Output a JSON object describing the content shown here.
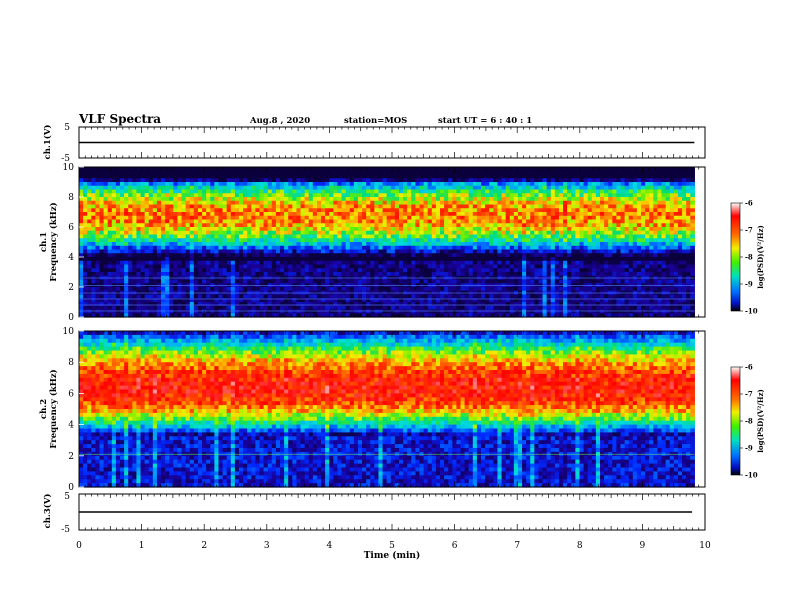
{
  "header": {
    "title": "VLF Spectra",
    "date": "Aug.8 , 2020",
    "station": "station=MOS",
    "start": "start UT = 6 : 40 : 1"
  },
  "colors": {
    "scale": [
      "#1a0090",
      "#0030ff",
      "#0090ff",
      "#00e0e0",
      "#00e070",
      "#70f000",
      "#f0f000",
      "#ffa000",
      "#ff3000",
      "#ff0000"
    ]
  },
  "chart_data": [
    {
      "type": "line",
      "name": "ch1-voltage",
      "ylabel": "ch.1(V)",
      "ylim": [
        -5,
        5
      ],
      "yticks": [
        "5",
        "-5"
      ],
      "x": [
        0,
        9.83
      ],
      "y": [
        0,
        0
      ]
    },
    {
      "type": "heatmap",
      "name": "ch1-spectrogram",
      "ylabel": "ch.1\nFrequency (kHz)",
      "ylim": [
        0,
        10
      ],
      "yticks": [
        "10",
        "8",
        "6",
        "4",
        "2",
        "0"
      ],
      "colorbar": {
        "label": "log(PSD)(V²/Hz)",
        "range": [
          -10,
          -6
        ],
        "ticks": [
          "-6",
          "-7",
          "-8",
          "-9",
          "-10"
        ]
      },
      "bands": [
        {
          "from_khz": 9.3,
          "to_khz": 10,
          "level": -10
        },
        {
          "from_khz": 4,
          "to_khz": 9,
          "peak_khz": 6.8,
          "level": -7
        }
      ]
    },
    {
      "type": "heatmap",
      "name": "ch2-spectrogram",
      "ylabel": "ch.2\nFrequency (kHz)",
      "ylim": [
        0,
        10
      ],
      "yticks": [
        "10",
        "8",
        "6",
        "4",
        "2",
        "0"
      ],
      "colorbar": {
        "label": "log(PSD)(V²/Hz)",
        "range": [
          -10,
          -6
        ],
        "ticks": [
          "-6",
          "-7",
          "-8",
          "-9",
          "-10"
        ]
      },
      "bands": [
        {
          "from_khz": 3.5,
          "to_khz": 10,
          "peak_khz": 6.3,
          "level": -6.5
        }
      ]
    },
    {
      "type": "line",
      "name": "ch3-voltage",
      "ylabel": "ch.3(V)",
      "ylim": [
        -5,
        5
      ],
      "yticks": [
        "5",
        "-5"
      ],
      "x": [
        0,
        9.83
      ],
      "y": [
        0,
        0
      ]
    }
  ],
  "xaxis": {
    "label": "Time (min)",
    "range": [
      0,
      10
    ],
    "ticks": [
      "0",
      "1",
      "2",
      "3",
      "4",
      "5",
      "6",
      "7",
      "8",
      "9",
      "10"
    ]
  }
}
